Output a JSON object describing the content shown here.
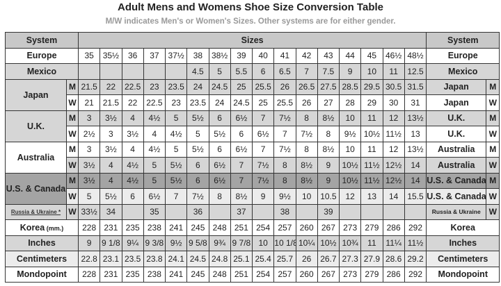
{
  "title": "Adult Mens and Womens Shoe Size Conversion Table",
  "subtitle": "M/W indicates Men's or Women's Sizes. Other systems are for either gender.",
  "header": {
    "system": "System",
    "sizes": "Sizes"
  },
  "rows": [
    {
      "label": "Europe",
      "right": "Europe",
      "style": "white",
      "values": [
        "35",
        "35½",
        "36",
        "37",
        "37½",
        "38",
        "38½",
        "39",
        "40",
        "41",
        "42",
        "43",
        "44",
        "45",
        "46½",
        "48½"
      ]
    },
    {
      "label": "Mexico",
      "right": "Mexico",
      "style": "gray",
      "values": [
        "",
        "",
        "",
        "",
        "",
        "4.5",
        "5",
        "5.5",
        "6",
        "6.5",
        "7",
        "7.5",
        "9",
        "10",
        "11",
        "12.5"
      ]
    },
    {
      "group": "Japan",
      "mw": "M",
      "right": "Japan",
      "style": "gray",
      "values": [
        "21.5",
        "22",
        "22.5",
        "23",
        "23.5",
        "24",
        "24.5",
        "25",
        "25.5",
        "26",
        "26.5",
        "27.5",
        "28.5",
        "29.5",
        "30.5",
        "31.5"
      ]
    },
    {
      "group": "Japan",
      "mw": "W",
      "right": "Japan",
      "style": "white",
      "values": [
        "21",
        "21.5",
        "22",
        "22.5",
        "23",
        "23.5",
        "24",
        "24.5",
        "25",
        "25.5",
        "26",
        "27",
        "28",
        "29",
        "30",
        "31"
      ]
    },
    {
      "group": "U.K.",
      "mw": "M",
      "right": "U.K.",
      "style": "gray",
      "values": [
        "3",
        "3½",
        "4",
        "4½",
        "5",
        "5½",
        "6",
        "6½",
        "7",
        "7½",
        "8",
        "8½",
        "10",
        "11",
        "12",
        "13½"
      ]
    },
    {
      "group": "U.K.",
      "mw": "W",
      "right": "U.K.",
      "style": "white",
      "values": [
        "2½",
        "3",
        "3½",
        "4",
        "4½",
        "5",
        "5½",
        "6",
        "6½",
        "7",
        "7½",
        "8",
        "9½",
        "10½",
        "11½",
        "13"
      ]
    },
    {
      "group": "Australia",
      "mw": "M",
      "right": "Australia",
      "style": "white",
      "values": [
        "3",
        "3½",
        "4",
        "4½",
        "5",
        "5½",
        "6",
        "6½",
        "7",
        "7½",
        "8",
        "8½",
        "10",
        "11",
        "12",
        "13½"
      ]
    },
    {
      "group": "Australia",
      "mw": "W",
      "right": "Australia",
      "style": "gray",
      "values": [
        "3½",
        "4",
        "4½",
        "5",
        "5½",
        "6",
        "6½",
        "7",
        "7½",
        "8",
        "8½",
        "9",
        "10½",
        "11½",
        "12½",
        "14"
      ]
    },
    {
      "group": "U.S. & Canada",
      "mw": "M",
      "right": "U.S. & Canada",
      "style": "dark",
      "values": [
        "3½",
        "4",
        "4½",
        "5",
        "5½",
        "6",
        "6½",
        "7",
        "7½",
        "8",
        "8½",
        "9",
        "10½",
        "11½",
        "12½",
        "14"
      ]
    },
    {
      "group": "U.S. & Canada",
      "mw": "W",
      "right": "U.S. & Canada",
      "style": "light",
      "values": [
        "5",
        "5½",
        "6",
        "6½",
        "7",
        "7½",
        "8",
        "8½",
        "9",
        "9½",
        "10",
        "10.5",
        "12",
        "13",
        "14",
        "15.5"
      ]
    },
    {
      "group": "Russia & Ukraine *",
      "mw": "W",
      "right": "Russia & Ukraine",
      "style": "gray",
      "link": true,
      "values": [
        "33½",
        "34",
        "",
        "35",
        "",
        "36",
        "",
        "37",
        "",
        "38",
        "",
        "39",
        "",
        "",
        "",
        ""
      ]
    },
    {
      "label": "Korea",
      "unit": "(mm.)",
      "right": "Korea",
      "style": "white",
      "values": [
        "228",
        "231",
        "235",
        "238",
        "241",
        "245",
        "248",
        "251",
        "254",
        "257",
        "260",
        "267",
        "273",
        "279",
        "286",
        "292"
      ]
    },
    {
      "label": "Inches",
      "right": "Inches",
      "style": "gray",
      "values": [
        "9",
        "9 1/8",
        "9¼",
        "9 3/8",
        "9½",
        "9 5/8",
        "9¾",
        "9 7/8",
        "10",
        "10 1/8",
        "10¼",
        "10½",
        "10¾",
        "11",
        "11¼",
        "11½"
      ]
    },
    {
      "label": "Centimeters",
      "right": "Centimeters",
      "style": "light",
      "values": [
        "22.8",
        "23.1",
        "23.5",
        "23.8",
        "24.1",
        "24.5",
        "24.8",
        "25.1",
        "25.4",
        "25.7",
        "26",
        "26.7",
        "27.3",
        "27.9",
        "28.6",
        "29.2"
      ]
    },
    {
      "label": "Mondopoint",
      "right": "Mondopoint",
      "style": "white",
      "values": [
        "228",
        "231",
        "235",
        "238",
        "241",
        "245",
        "248",
        "251",
        "254",
        "257",
        "260",
        "267",
        "273",
        "279",
        "286",
        "292"
      ]
    }
  ]
}
